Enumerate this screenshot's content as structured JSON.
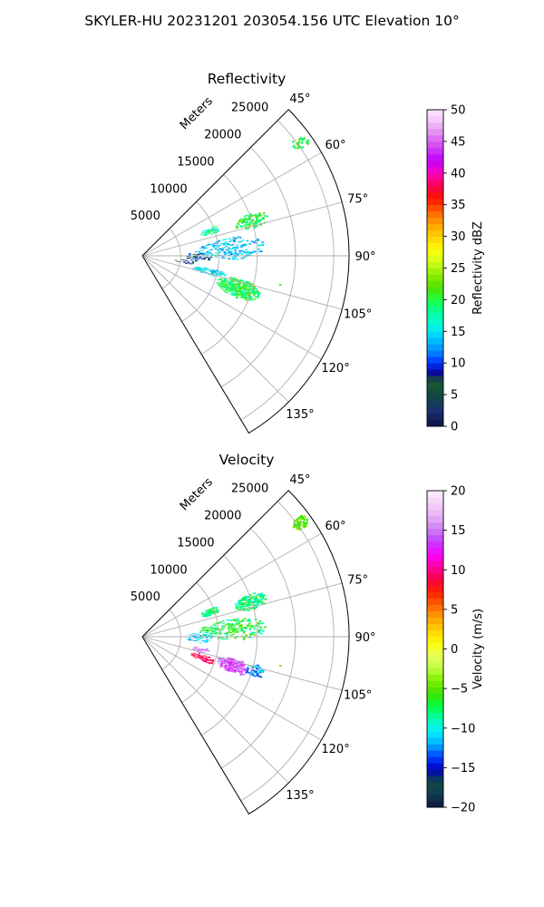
{
  "figure": {
    "title": "SKYLER-HU  20231201  203054.156 UTC Elevation 10°"
  },
  "chart_data": [
    {
      "type": "heatmap",
      "subtype": "polar-sector-ppi",
      "title": "Reflectivity",
      "radial_label": "Meters",
      "radial_ticks": [
        5000,
        10000,
        15000,
        20000,
        25000
      ],
      "radial_tick_labels": [
        "5000",
        "10000",
        "15000",
        "20000",
        "25000"
      ],
      "radial_max": 27000,
      "angle_range": [
        45,
        149
      ],
      "angle_ticks": [
        45,
        60,
        75,
        90,
        105,
        120,
        135
      ],
      "angle_tick_labels": [
        "45°",
        "60°",
        "75°",
        "90°",
        "105°",
        "120°",
        "135°"
      ],
      "grid": true,
      "colorbar": {
        "label": "Reflectivity dBZ",
        "range": [
          0,
          50
        ],
        "ticks": [
          0,
          5,
          10,
          15,
          20,
          25,
          30,
          35,
          40,
          45,
          50
        ],
        "tick_labels": [
          "0",
          "5",
          "10",
          "15",
          "20",
          "25",
          "30",
          "35",
          "40",
          "45",
          "50"
        ],
        "palette": "homeyer_rainbow"
      },
      "echo_regions": [
        {
          "az": [
            52,
            56
          ],
          "range": [
            24000,
            26500
          ],
          "value": 20,
          "spread": 2,
          "density": 0.7
        },
        {
          "az": [
            68,
            76
          ],
          "range": [
            12500,
            17000
          ],
          "value": 20,
          "spread": 3,
          "density": 0.75
        },
        {
          "az": [
            67,
            73
          ],
          "range": [
            8000,
            10500
          ],
          "value": 18,
          "spread": 3,
          "density": 0.75
        },
        {
          "az": [
            78,
            92
          ],
          "range": [
            7000,
            16000
          ],
          "value": 14,
          "spread": 3,
          "density": 0.4
        },
        {
          "az": [
            85,
            96
          ],
          "range": [
            5500,
            9000
          ],
          "value": 9,
          "spread": 4,
          "density": 0.4
        },
        {
          "az": [
            100,
            106
          ],
          "range": [
            6500,
            11000
          ],
          "value": 15,
          "spread": 3,
          "density": 0.65
        },
        {
          "az": [
            103,
            114
          ],
          "range": [
            10000,
            16000
          ],
          "value": 20,
          "spread": 3,
          "density": 0.9
        },
        {
          "az": [
            95,
            100
          ],
          "range": [
            4000,
            7000
          ],
          "value": 7,
          "spread": 4,
          "density": 0.3
        },
        {
          "az": [
            101,
            102
          ],
          "range": [
            18000,
            18500
          ],
          "value": 20,
          "spread": 1,
          "density": 0.8
        }
      ]
    },
    {
      "type": "heatmap",
      "subtype": "polar-sector-ppi",
      "title": "Velocity",
      "radial_label": "Meters",
      "radial_ticks": [
        5000,
        10000,
        15000,
        20000,
        25000
      ],
      "radial_tick_labels": [
        "5000",
        "10000",
        "15000",
        "20000",
        "25000"
      ],
      "radial_max": 27000,
      "angle_range": [
        45,
        149
      ],
      "angle_ticks": [
        45,
        60,
        75,
        90,
        105,
        120,
        135
      ],
      "angle_tick_labels": [
        "45°",
        "60°",
        "75°",
        "90°",
        "105°",
        "120°",
        "135°"
      ],
      "grid": true,
      "colorbar": {
        "label": "Velocity (m/s)",
        "range": [
          -20,
          20
        ],
        "ticks": [
          -20,
          -15,
          -10,
          -5,
          0,
          5,
          10,
          15,
          20
        ],
        "tick_labels": [
          "−20",
          "−15",
          "−10",
          "−5",
          "0",
          "5",
          "10",
          "15",
          "20"
        ],
        "palette": "balance_rainbow"
      },
      "echo_regions": [
        {
          "az": [
            52,
            56
          ],
          "range": [
            24000,
            26500
          ],
          "value": -5,
          "spread": 1.5,
          "density": 0.7
        },
        {
          "az": [
            68,
            76
          ],
          "range": [
            12500,
            17000
          ],
          "value": -8,
          "spread": 2,
          "density": 0.75
        },
        {
          "az": [
            67,
            73
          ],
          "range": [
            8000,
            10500
          ],
          "value": -8,
          "spread": 2,
          "density": 0.75
        },
        {
          "az": [
            78,
            92
          ],
          "range": [
            7000,
            16000
          ],
          "value": -7,
          "spread": 3,
          "density": 0.4
        },
        {
          "az": [
            85,
            96
          ],
          "range": [
            5500,
            9000
          ],
          "value": -11,
          "spread": 2,
          "density": 0.4
        },
        {
          "az": [
            100,
            106
          ],
          "range": [
            6500,
            9000
          ],
          "value": 15,
          "spread": 2,
          "density": 0.6
        },
        {
          "az": [
            106,
            112
          ],
          "range": [
            6500,
            10000
          ],
          "value": 9,
          "spread": 1.5,
          "density": 0.7
        },
        {
          "az": [
            103,
            112
          ],
          "range": [
            10000,
            14500
          ],
          "value": 14,
          "spread": 2,
          "density": 0.9
        },
        {
          "az": [
            103,
            110
          ],
          "range": [
            14000,
            16500
          ],
          "value": -12,
          "spread": 2,
          "density": 0.7
        },
        {
          "az": [
            101,
            102
          ],
          "range": [
            18000,
            18500
          ],
          "value": -5,
          "spread": 1,
          "density": 0.8
        }
      ]
    }
  ]
}
